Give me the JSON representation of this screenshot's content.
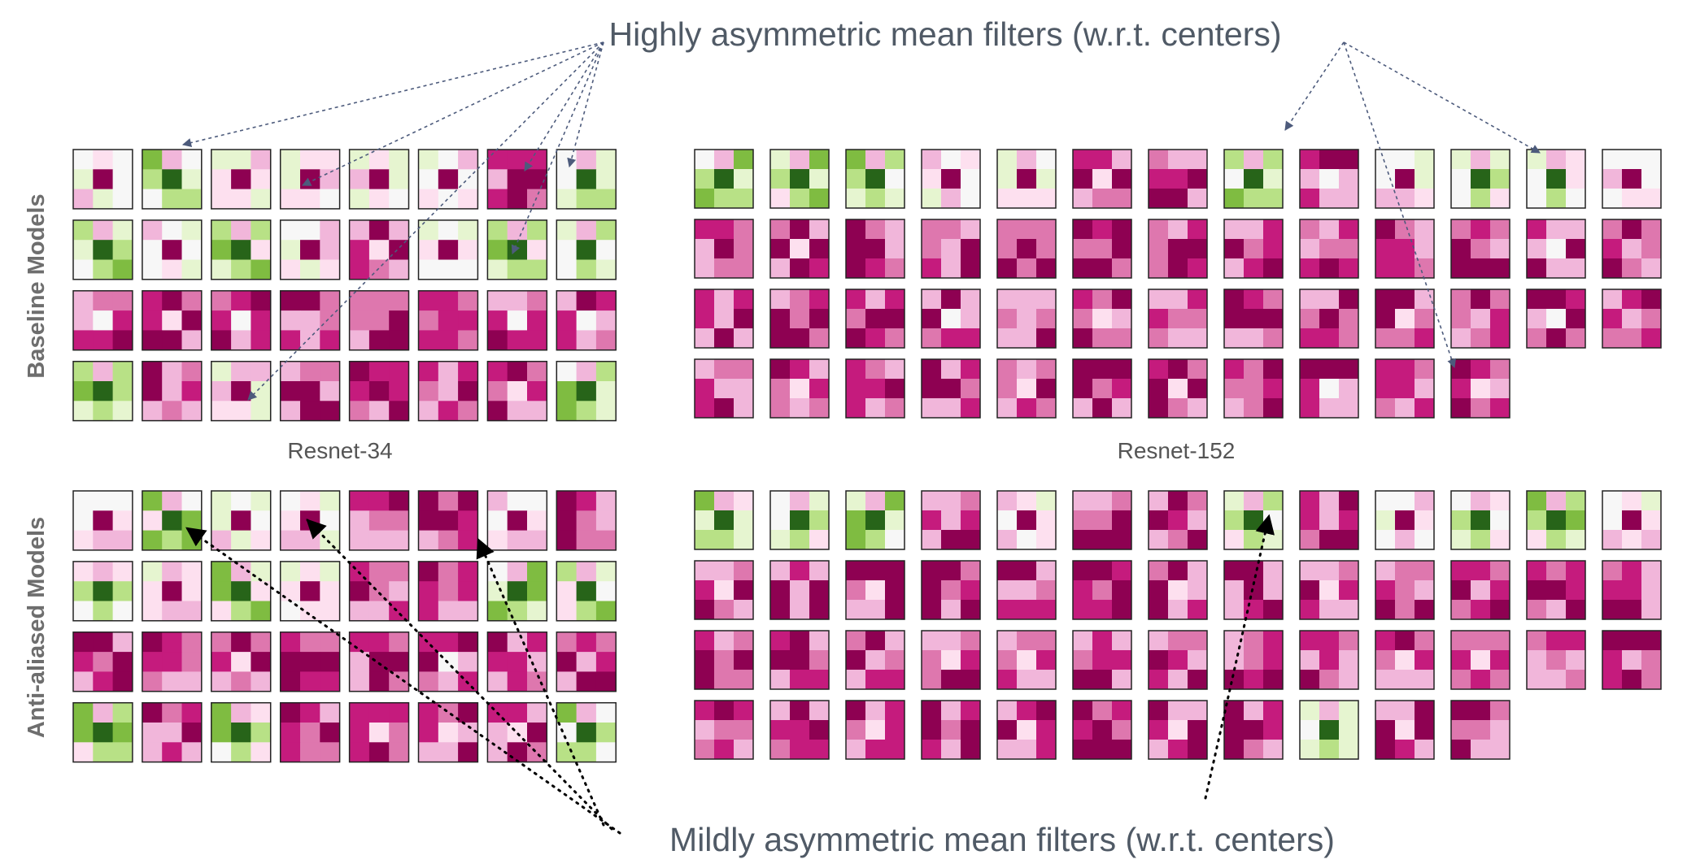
{
  "annotations": {
    "highly": "Highly asymmetric mean filters (w.r.t. centers)",
    "mildly": "Mildly asymmetric mean filters (w.r.t. centers)"
  },
  "rows": {
    "baseline": "Baseline Models",
    "antialiased": "Anti-aliased Models"
  },
  "models": {
    "resnet34": "Resnet-34",
    "resnet152": "Resnet-152"
  },
  "palette": {
    "pink_dark": "#8e0152",
    "pink_mid": "#c51b7d",
    "pink_light": "#de77ae",
    "pink_pale": "#f1b6da",
    "pink_faint": "#fde0ef",
    "neutral": "#f7f7f7",
    "green_faint": "#e6f5d0",
    "green_light": "#b8e186",
    "green_mid": "#7fbc41",
    "green_dark": "#276419",
    "annotation_text": "#505a66",
    "label_gray": "#6e6e6e",
    "arrow_top": "#4d5b7c",
    "arrow_bottom": "#000000"
  }
}
